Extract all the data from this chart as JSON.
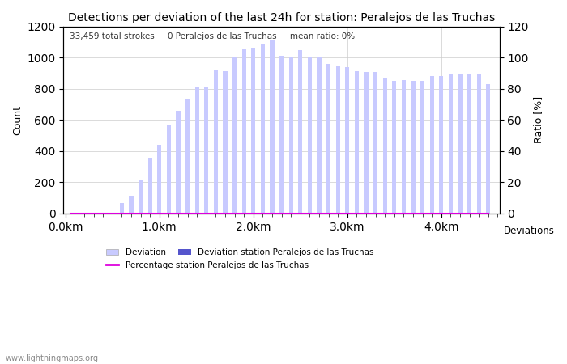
{
  "title": "Detections per deviation of the last 24h for station: Peralejos de las Truchas",
  "subtitle": "33,459 total strokes     0 Peralejos de las Truchas     mean ratio: 0%",
  "xlabel_right": "Deviations",
  "ylabel_left": "Count",
  "ylabel_right": "Ratio [%]",
  "watermark": "www.lightningmaps.org",
  "ylim_left": [
    0,
    1200
  ],
  "ylim_right": [
    0,
    120
  ],
  "bar_color_light": "#c8caff",
  "bar_color_dark": "#5555cc",
  "line_color": "#dd00dd",
  "x_values": [
    0.05,
    0.1,
    0.15,
    0.2,
    0.25,
    0.3,
    0.35,
    0.4,
    0.45,
    0.5,
    0.55,
    0.6,
    0.65,
    0.7,
    0.75,
    0.8,
    0.85,
    0.9,
    0.95,
    1.0,
    1.05,
    1.1,
    1.15,
    1.2,
    1.25,
    1.3,
    1.35,
    1.4,
    1.45,
    1.5,
    1.55,
    1.6,
    1.65,
    1.7,
    1.75,
    1.8,
    1.85,
    1.9,
    1.95,
    2.0,
    2.05,
    2.1,
    2.15,
    2.2,
    2.25,
    2.3,
    2.35,
    2.4,
    2.45,
    2.5,
    2.55,
    2.6,
    2.65,
    2.7,
    2.75,
    2.8,
    2.85,
    2.9,
    2.95,
    3.0,
    3.05,
    3.1,
    3.15,
    3.2,
    3.25,
    3.3,
    3.35,
    3.4,
    3.45,
    3.5,
    3.55,
    3.6,
    3.65,
    3.7,
    3.75,
    3.8,
    3.85,
    3.9,
    3.95,
    4.0,
    4.05,
    4.1,
    4.15,
    4.2,
    4.25,
    4.3,
    4.35,
    4.4,
    4.45,
    4.5
  ],
  "counts": [
    2,
    1,
    1,
    1,
    1,
    1,
    1,
    1,
    1,
    1,
    1,
    65,
    5,
    115,
    5,
    210,
    5,
    360,
    5,
    440,
    5,
    570,
    5,
    660,
    5,
    730,
    5,
    815,
    5,
    810,
    5,
    920,
    5,
    915,
    5,
    1010,
    5,
    1055,
    5,
    1065,
    5,
    1090,
    5,
    1110,
    5,
    1015,
    5,
    1010,
    5,
    1050,
    5,
    1010,
    5,
    1010,
    5,
    960,
    5,
    945,
    5,
    940,
    5,
    915,
    5,
    910,
    5,
    910,
    5,
    870,
    5,
    850,
    5,
    855,
    5,
    850,
    5,
    850,
    5,
    885,
    5,
    885,
    5,
    900,
    5,
    900,
    5,
    895,
    5,
    895,
    5,
    830
  ],
  "station_counts": [
    0,
    0,
    0,
    0,
    0,
    0,
    0,
    0,
    0,
    0,
    0,
    0,
    0,
    0,
    0,
    0,
    0,
    0,
    0,
    0,
    0,
    0,
    0,
    0,
    0,
    0,
    0,
    0,
    0,
    0,
    0,
    0,
    0,
    0,
    0,
    0,
    0,
    0,
    0,
    0,
    0,
    0,
    0,
    0,
    0,
    0,
    0,
    0,
    0,
    0,
    0,
    0,
    0,
    0,
    0,
    0,
    0,
    0,
    0,
    0,
    0,
    0,
    0,
    0,
    0,
    0,
    0,
    0,
    0,
    0,
    0,
    0,
    0,
    0,
    0,
    0,
    0,
    0,
    0,
    0,
    0,
    0,
    0,
    0,
    0,
    0,
    0,
    0,
    0,
    0
  ],
  "ratio": [
    0,
    0,
    0,
    0,
    0,
    0,
    0,
    0,
    0,
    0,
    0,
    0,
    0,
    0,
    0,
    0,
    0,
    0,
    0,
    0,
    0,
    0,
    0,
    0,
    0,
    0,
    0,
    0,
    0,
    0,
    0,
    0,
    0,
    0,
    0,
    0,
    0,
    0,
    0,
    0,
    0,
    0,
    0,
    0,
    0,
    0,
    0,
    0,
    0,
    0,
    0,
    0,
    0,
    0,
    0,
    0,
    0,
    0,
    0,
    0,
    0,
    0,
    0,
    0,
    0,
    0,
    0,
    0,
    0,
    0,
    0,
    0,
    0,
    0,
    0,
    0,
    0,
    0,
    0,
    0,
    0,
    0,
    0,
    0,
    0,
    0,
    0,
    0,
    0,
    0
  ],
  "xtick_positions": [
    0.0,
    1.0,
    2.0,
    3.0,
    4.0
  ],
  "xtick_labels": [
    "0.0km",
    "1.0km",
    "2.0km",
    "3.0km",
    "4.0km"
  ],
  "ytick_left": [
    0,
    200,
    400,
    600,
    800,
    1000,
    1200
  ],
  "ytick_right": [
    0,
    20,
    40,
    60,
    80,
    100,
    120
  ],
  "grid_color": "#cccccc",
  "bg_color": "#ffffff",
  "fig_bg_color": "#ffffff",
  "xlim": [
    -0.02,
    4.62
  ]
}
